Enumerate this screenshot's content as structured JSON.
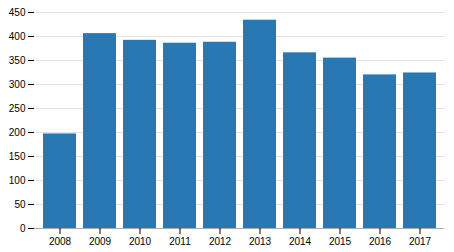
{
  "chart_data": {
    "type": "bar",
    "categories": [
      "2008",
      "2009",
      "2010",
      "2011",
      "2012",
      "2013",
      "2014",
      "2015",
      "2016",
      "2017"
    ],
    "values": [
      197,
      406,
      392,
      386,
      388,
      434,
      366,
      355,
      320,
      324
    ],
    "color": "#2878b4",
    "ylim": [
      0,
      450
    ],
    "yticks": [
      0,
      50,
      100,
      150,
      200,
      250,
      300,
      350,
      400,
      450
    ],
    "grid": true
  }
}
